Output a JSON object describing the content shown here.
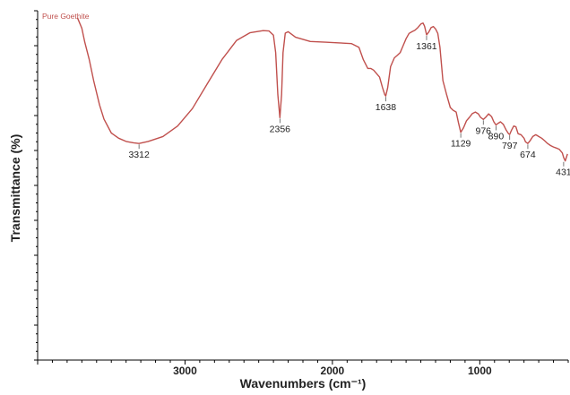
{
  "chart_data": {
    "type": "line",
    "title": "",
    "xlabel": "Wavenumbers (cm⁻¹)",
    "ylabel": "Transmittance (%)",
    "x_reversed": true,
    "xlim": [
      4000,
      400
    ],
    "ylim": [
      0,
      100
    ],
    "x_ticks": [
      3000,
      2000,
      1000
    ],
    "y_tick_labels": false,
    "grid": false,
    "legend": "top-left",
    "colors": {
      "line": "#c0504d",
      "axis": "#000000",
      "text": "#222222"
    },
    "series": [
      {
        "name": "Pure Goethite",
        "x": [
          3730,
          3700,
          3680,
          3650,
          3620,
          3580,
          3550,
          3500,
          3450,
          3400,
          3350,
          3312,
          3250,
          3150,
          3050,
          2950,
          2850,
          2750,
          2650,
          2560,
          2470,
          2430,
          2400,
          2385,
          2370,
          2356,
          2345,
          2335,
          2320,
          2300,
          2250,
          2150,
          2050,
          1950,
          1870,
          1820,
          1790,
          1760,
          1740,
          1720,
          1700,
          1680,
          1660,
          1645,
          1638,
          1625,
          1605,
          1580,
          1560,
          1540,
          1520,
          1500,
          1480,
          1460,
          1440,
          1420,
          1400,
          1385,
          1375,
          1361,
          1345,
          1330,
          1315,
          1300,
          1285,
          1270,
          1250,
          1225,
          1200,
          1180,
          1160,
          1145,
          1129,
          1110,
          1090,
          1070,
          1050,
          1030,
          1010,
          995,
          976,
          960,
          940,
          920,
          905,
          890,
          875,
          860,
          840,
          820,
          805,
          797,
          785,
          770,
          755,
          740,
          720,
          700,
          690,
          674,
          660,
          640,
          620,
          600,
          580,
          560,
          540,
          520,
          500,
          480,
          460,
          440,
          431,
          420,
          405
        ],
        "y": [
          98,
          95,
          91,
          86,
          80,
          73,
          69,
          65,
          63.5,
          62.6,
          62.2,
          62,
          62.6,
          64,
          67,
          72,
          79,
          86,
          91.5,
          93.7,
          94.3,
          94.2,
          93,
          88,
          76,
          69.4,
          76,
          88,
          93.6,
          94,
          92.4,
          91.2,
          91,
          90.8,
          90.6,
          89.5,
          86,
          83.5,
          83.5,
          83,
          82,
          81,
          78,
          76,
          75.6,
          78,
          84,
          86.5,
          87.2,
          88,
          90,
          92,
          93.5,
          94,
          94.4,
          95.2,
          96.2,
          96.5,
          95.6,
          93.1,
          94,
          95.2,
          95.5,
          94.8,
          93.5,
          89.5,
          80,
          76,
          72.3,
          71.5,
          71,
          68,
          65.2,
          66.5,
          68.5,
          69.5,
          70.6,
          71,
          70.5,
          69.5,
          68.9,
          69.5,
          70.5,
          69.7,
          68.2,
          67.3,
          67.8,
          68.2,
          67.5,
          65.8,
          64.8,
          64.6,
          65.8,
          67,
          66.8,
          64.8,
          64.5,
          63.5,
          62.5,
          62,
          62.7,
          64,
          64.5,
          64,
          63.5,
          62.8,
          62,
          61.4,
          61,
          60.7,
          60.3,
          59.3,
          58,
          57,
          59
        ]
      }
    ],
    "annotations": [
      {
        "text": "3312",
        "x": 3312,
        "y": 62
      },
      {
        "text": "2356",
        "x": 2356,
        "y": 69.4
      },
      {
        "text": "1638",
        "x": 1638,
        "y": 75.6
      },
      {
        "text": "1361",
        "x": 1361,
        "y": 93.1
      },
      {
        "text": "1129",
        "x": 1129,
        "y": 65.2
      },
      {
        "text": "976",
        "x": 976,
        "y": 68.9
      },
      {
        "text": "890",
        "x": 890,
        "y": 67.3
      },
      {
        "text": "797",
        "x": 797,
        "y": 64.6
      },
      {
        "text": "674",
        "x": 674,
        "y": 62
      },
      {
        "text": "431",
        "x": 431,
        "y": 57
      }
    ]
  }
}
